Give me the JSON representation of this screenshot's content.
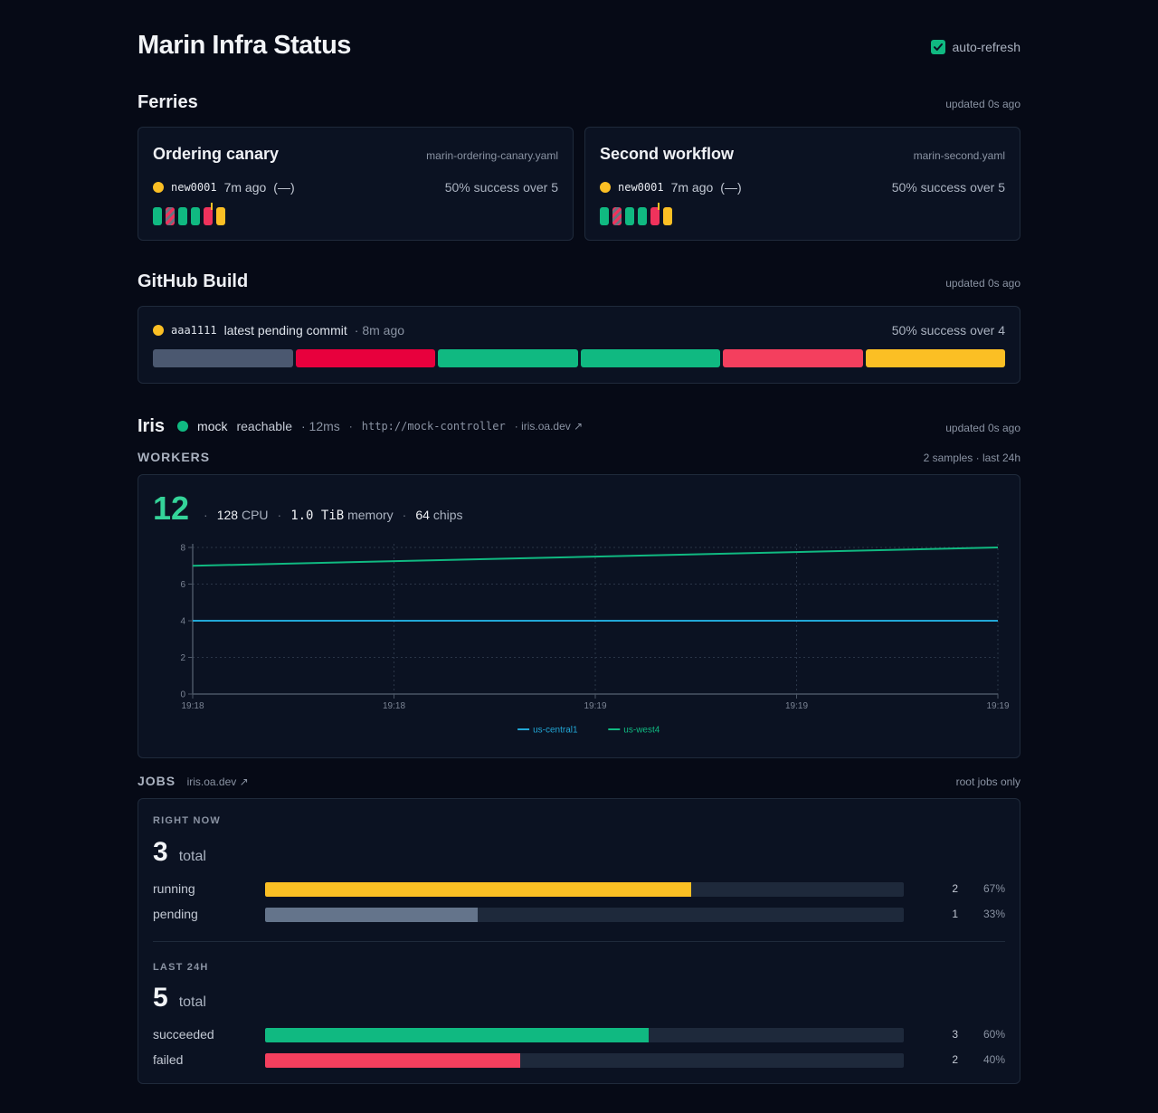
{
  "page": {
    "title": "Marin Infra Status",
    "auto_refresh_label": "auto-refresh",
    "auto_refresh_checked": true
  },
  "ferries": {
    "title": "Ferries",
    "updated": "updated 0s ago",
    "cards": [
      {
        "title": "Ordering canary",
        "file": "marin-ordering-canary.yaml",
        "commit": "new0001",
        "age": "7m ago",
        "extra": "(—)",
        "success": "50% success over 5",
        "runs": [
          "green",
          "striped",
          "green",
          "green",
          "red-bang",
          "yellow"
        ]
      },
      {
        "title": "Second workflow",
        "file": "marin-second.yaml",
        "commit": "new0001",
        "age": "7m ago",
        "extra": "(—)",
        "success": "50% success over 5",
        "runs": [
          "green",
          "striped",
          "green",
          "green",
          "red-bang",
          "yellow"
        ]
      }
    ]
  },
  "github": {
    "title": "GitHub Build",
    "updated": "updated 0s ago",
    "sha": "aaa1111",
    "message": "latest pending commit",
    "age": "· 8m ago",
    "success": "50% success over 4",
    "bar_colors": [
      "#4b5870",
      "#e8003d",
      "#10b981",
      "#10b981",
      "#f43f5e",
      "#fbbf24"
    ]
  },
  "iris": {
    "title": "Iris",
    "name": "mock",
    "status": "reachable",
    "latency": "· 12ms",
    "dot_sep": "·",
    "url": "http://mock-controller",
    "link": "· iris.oa.dev ↗",
    "updated": "updated 0s ago"
  },
  "workers": {
    "title": "WORKERS",
    "samples": "2 samples · last 24h",
    "count": "12",
    "sep": "·",
    "cpu_value": "128",
    "cpu_label": "CPU",
    "mem_value": "1.0 TiB",
    "mem_label": "memory",
    "chips_value": "64",
    "chips_label": "chips"
  },
  "chart_data": {
    "type": "line",
    "title": "",
    "xlabel": "",
    "ylabel": "",
    "ylim": [
      0,
      8
    ],
    "yticks": [
      0,
      2,
      4,
      6,
      8
    ],
    "xticks": [
      "19:18",
      "19:18",
      "19:19",
      "19:19",
      "19:19"
    ],
    "x": [
      0,
      1
    ],
    "series": [
      {
        "name": "us-central1",
        "color": "#22a7d6",
        "values": [
          4,
          4
        ]
      },
      {
        "name": "us-west4",
        "color": "#10b981",
        "values": [
          7,
          8
        ]
      }
    ],
    "legend": "bottom-center",
    "grid": true
  },
  "jobs": {
    "title": "JOBS",
    "link": "iris.oa.dev ↗",
    "scope": "root jobs only",
    "now": {
      "label": "RIGHT NOW",
      "total": "3",
      "total_label": "total",
      "rows": [
        {
          "name": "running",
          "count": "2",
          "pct": "67%",
          "fraction": 0.667,
          "color": "#fbbf24"
        },
        {
          "name": "pending",
          "count": "1",
          "pct": "33%",
          "fraction": 0.333,
          "color": "#64748b"
        }
      ]
    },
    "day": {
      "label": "LAST 24H",
      "total": "5",
      "total_label": "total",
      "rows": [
        {
          "name": "succeeded",
          "count": "3",
          "pct": "60%",
          "fraction": 0.6,
          "color": "#10b981"
        },
        {
          "name": "failed",
          "count": "2",
          "pct": "40%",
          "fraction": 0.4,
          "color": "#f43f5e"
        }
      ]
    }
  }
}
